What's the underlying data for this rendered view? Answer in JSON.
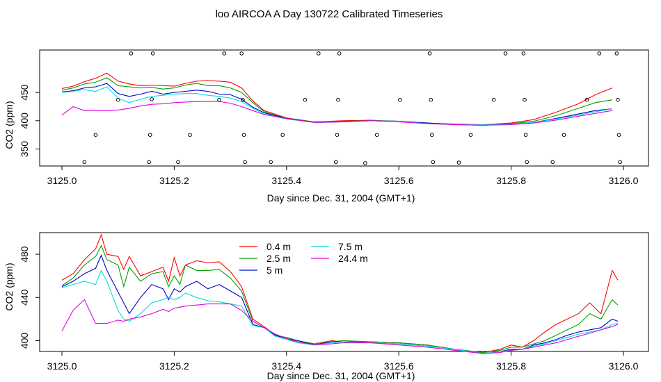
{
  "title": "loo AIRCOA A  Day 130722  Calibrated Timeseries",
  "colors": {
    "0.4 m": "#ff0000",
    "2.5 m": "#00a000",
    "5 m": "#0000cc",
    "7.5 m": "#00dede",
    "24.4 m": "#e000e0"
  },
  "chart_data": [
    {
      "type": "line",
      "xlabel": "Day since Dec. 31, 2004 (GMT+1)",
      "ylabel": "CO2 (ppm)",
      "xlim": [
        3125.0,
        3126.0
      ],
      "ylim": [
        320,
        525
      ],
      "xticks": [
        "3125.0",
        "3125.2",
        "3125.4",
        "3125.6",
        "3125.8",
        "3126.0"
      ],
      "yticks": [
        "350",
        "400",
        "450"
      ],
      "x": [
        3125.0,
        3125.02,
        3125.04,
        3125.06,
        3125.08,
        3125.1,
        3125.12,
        3125.14,
        3125.16,
        3125.18,
        3125.2,
        3125.22,
        3125.24,
        3125.26,
        3125.28,
        3125.3,
        3125.32,
        3125.34,
        3125.36,
        3125.4,
        3125.45,
        3125.5,
        3125.55,
        3125.6,
        3125.65,
        3125.7,
        3125.75,
        3125.8,
        3125.84,
        3125.88,
        3125.92,
        3125.95,
        3125.98
      ],
      "series": [
        {
          "name": "0.4 m",
          "values": [
            457,
            461,
            469,
            475,
            484,
            470,
            465,
            462,
            463,
            462,
            461,
            466,
            470,
            471,
            470,
            468,
            458,
            435,
            418,
            405,
            398,
            400,
            401,
            399,
            396,
            394,
            393,
            396,
            402,
            415,
            430,
            446,
            458
          ]
        },
        {
          "name": "2.5 m",
          "values": [
            454,
            458,
            465,
            468,
            476,
            462,
            460,
            458,
            459,
            456,
            458,
            463,
            466,
            462,
            462,
            458,
            450,
            432,
            416,
            404,
            398,
            399,
            400,
            399,
            396,
            393,
            393,
            395,
            399,
            409,
            422,
            432,
            437
          ]
        },
        {
          "name": "5 m",
          "values": [
            451,
            453,
            458,
            460,
            466,
            448,
            443,
            447,
            452,
            447,
            450,
            452,
            454,
            452,
            447,
            446,
            438,
            424,
            414,
            404,
            397,
            398,
            400,
            399,
            396,
            393,
            392,
            394,
            397,
            404,
            412,
            418,
            421
          ]
        },
        {
          "name": "7.5 m",
          "values": [
            450,
            452,
            455,
            452,
            460,
            440,
            432,
            438,
            443,
            445,
            447,
            448,
            448,
            445,
            443,
            440,
            434,
            422,
            412,
            403,
            397,
            398,
            400,
            399,
            395,
            393,
            393,
            394,
            397,
            403,
            410,
            416,
            421
          ]
        },
        {
          "name": "24.4 m",
          "values": [
            410,
            425,
            418,
            418,
            418,
            419,
            422,
            426,
            429,
            430,
            432,
            433,
            434,
            434,
            434,
            431,
            425,
            418,
            411,
            404,
            397,
            398,
            400,
            398,
            395,
            393,
            392,
            393,
            396,
            401,
            408,
            413,
            418
          ]
        }
      ],
      "markers": [
        {
          "x": 3125.04,
          "y": 327
        },
        {
          "x": 3125.06,
          "y": 375
        },
        {
          "x": 3125.1,
          "y": 437
        },
        {
          "x": 3125.123,
          "y": 519
        },
        {
          "x": 3125.155,
          "y": 327
        },
        {
          "x": 3125.157,
          "y": 375
        },
        {
          "x": 3125.16,
          "y": 438
        },
        {
          "x": 3125.162,
          "y": 519
        },
        {
          "x": 3125.207,
          "y": 327
        },
        {
          "x": 3125.228,
          "y": 375
        },
        {
          "x": 3125.28,
          "y": 437
        },
        {
          "x": 3125.289,
          "y": 519
        },
        {
          "x": 3125.32,
          "y": 519
        },
        {
          "x": 3125.322,
          "y": 437
        },
        {
          "x": 3125.324,
          "y": 375
        },
        {
          "x": 3125.326,
          "y": 327
        },
        {
          "x": 3125.372,
          "y": 327
        },
        {
          "x": 3125.393,
          "y": 375
        },
        {
          "x": 3125.433,
          "y": 437
        },
        {
          "x": 3125.457,
          "y": 519
        },
        {
          "x": 3125.488,
          "y": 327
        },
        {
          "x": 3125.49,
          "y": 375
        },
        {
          "x": 3125.492,
          "y": 437
        },
        {
          "x": 3125.494,
          "y": 519
        },
        {
          "x": 3125.54,
          "y": 325
        },
        {
          "x": 3125.561,
          "y": 375
        },
        {
          "x": 3125.602,
          "y": 437
        },
        {
          "x": 3125.655,
          "y": 519
        },
        {
          "x": 3125.657,
          "y": 437
        },
        {
          "x": 3125.659,
          "y": 375
        },
        {
          "x": 3125.661,
          "y": 327
        },
        {
          "x": 3125.707,
          "y": 326
        },
        {
          "x": 3125.728,
          "y": 375
        },
        {
          "x": 3125.769,
          "y": 437
        },
        {
          "x": 3125.79,
          "y": 519
        },
        {
          "x": 3125.822,
          "y": 519
        },
        {
          "x": 3125.824,
          "y": 437
        },
        {
          "x": 3125.826,
          "y": 375
        },
        {
          "x": 3125.828,
          "y": 327
        },
        {
          "x": 3125.874,
          "y": 327
        },
        {
          "x": 3125.894,
          "y": 375
        },
        {
          "x": 3125.935,
          "y": 437
        },
        {
          "x": 3125.957,
          "y": 519
        },
        {
          "x": 3125.988,
          "y": 519
        },
        {
          "x": 3125.99,
          "y": 437
        },
        {
          "x": 3125.992,
          "y": 375
        },
        {
          "x": 3125.994,
          "y": 327
        }
      ]
    },
    {
      "type": "line",
      "xlabel": "Day since Dec. 31, 2004 (GMT+1)",
      "ylabel": "CO2 (ppm)",
      "xlim": [
        3125.0,
        3126.0
      ],
      "ylim": [
        390,
        500
      ],
      "xticks": [
        "3125.0",
        "3125.2",
        "3125.4",
        "3125.6",
        "3125.8",
        "3126.0"
      ],
      "yticks": [
        "400",
        "440",
        "480"
      ],
      "legend": {
        "placement": "top-center",
        "entries": [
          "0.4 m",
          "2.5 m",
          "5 m",
          "7.5 m",
          "24.4 m"
        ]
      },
      "x": [
        3125.0,
        3125.02,
        3125.04,
        3125.06,
        3125.07,
        3125.08,
        3125.1,
        3125.11,
        3125.12,
        3125.14,
        3125.16,
        3125.18,
        3125.19,
        3125.2,
        3125.21,
        3125.22,
        3125.24,
        3125.26,
        3125.28,
        3125.3,
        3125.32,
        3125.34,
        3125.36,
        3125.38,
        3125.4,
        3125.42,
        3125.45,
        3125.48,
        3125.5,
        3125.55,
        3125.6,
        3125.65,
        3125.7,
        3125.75,
        3125.78,
        3125.8,
        3125.82,
        3125.84,
        3125.86,
        3125.88,
        3125.9,
        3125.92,
        3125.94,
        3125.96,
        3125.98,
        3125.99
      ],
      "series": [
        {
          "name": "0.4 m",
          "values": [
            456,
            462,
            475,
            485,
            498,
            480,
            478,
            466,
            478,
            460,
            464,
            468,
            455,
            477,
            460,
            470,
            474,
            472,
            473,
            464,
            450,
            420,
            413,
            405,
            402,
            398,
            397,
            400,
            399,
            399,
            398,
            396,
            392,
            389,
            392,
            396,
            394,
            400,
            408,
            415,
            420,
            425,
            435,
            425,
            465,
            456
          ]
        },
        {
          "name": "2.5 m",
          "values": [
            451,
            458,
            470,
            478,
            488,
            475,
            470,
            450,
            468,
            455,
            462,
            464,
            450,
            460,
            452,
            470,
            465,
            465,
            466,
            458,
            446,
            418,
            412,
            405,
            403,
            400,
            397,
            399,
            400,
            399,
            398,
            396,
            392,
            389,
            391,
            394,
            394,
            397,
            400,
            405,
            410,
            415,
            425,
            420,
            438,
            433
          ]
        },
        {
          "name": "5 m",
          "values": [
            450,
            455,
            462,
            467,
            479,
            465,
            445,
            435,
            425,
            440,
            452,
            448,
            438,
            448,
            445,
            450,
            455,
            448,
            452,
            446,
            440,
            415,
            412,
            405,
            402,
            400,
            396,
            399,
            399,
            398,
            397,
            395,
            392,
            388,
            390,
            392,
            392,
            396,
            398,
            401,
            405,
            408,
            410,
            412,
            420,
            418
          ]
        },
        {
          "name": "7.5 m",
          "values": [
            449,
            452,
            455,
            452,
            465,
            455,
            428,
            420,
            418,
            425,
            435,
            438,
            440,
            438,
            440,
            444,
            440,
            437,
            436,
            434,
            432,
            414,
            412,
            404,
            401,
            398,
            396,
            398,
            399,
            398,
            397,
            395,
            392,
            388,
            390,
            391,
            392,
            395,
            397,
            400,
            403,
            406,
            408,
            410,
            415,
            416
          ]
        },
        {
          "name": "24.4 m",
          "values": [
            409,
            428,
            438,
            416,
            416,
            416,
            419,
            418,
            420,
            422,
            425,
            429,
            427,
            430,
            431,
            432,
            433,
            434,
            434,
            434,
            428,
            418,
            412,
            406,
            402,
            399,
            396,
            397,
            398,
            398,
            396,
            394,
            391,
            388,
            389,
            391,
            392,
            394,
            396,
            398,
            401,
            404,
            407,
            410,
            413,
            415
          ]
        }
      ]
    }
  ]
}
